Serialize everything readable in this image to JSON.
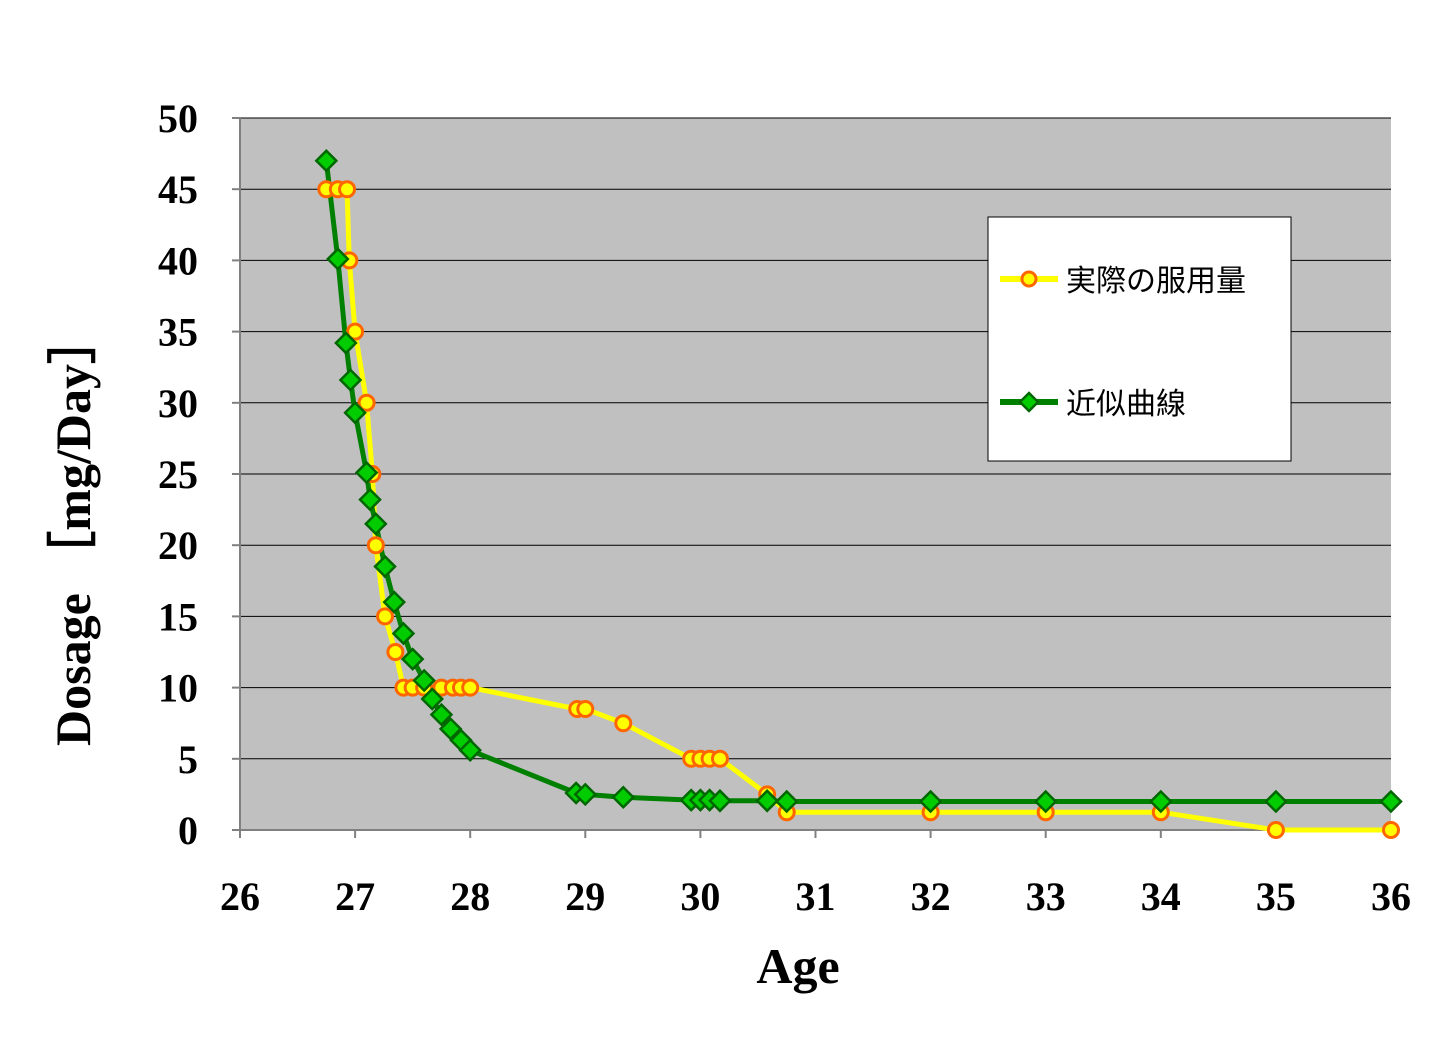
{
  "chart_data": {
    "type": "line",
    "xlabel": "Age",
    "ylabel": "Dosage ［mg/Day］",
    "xlim": [
      26,
      36
    ],
    "ylim": [
      0,
      50
    ],
    "xticks": [
      "26",
      "27",
      "28",
      "29",
      "30",
      "31",
      "32",
      "33",
      "34",
      "35",
      "36"
    ],
    "yticks": [
      "0",
      "5",
      "10",
      "15",
      "20",
      "25",
      "30",
      "35",
      "40",
      "45",
      "50"
    ],
    "plot_background": "#c0c0c0",
    "gridlines": "horizontal",
    "legend_position": "top-right",
    "series": [
      {
        "name": "実際の服用量",
        "line_color": "#ffff00",
        "marker": "circle",
        "marker_fill": "#ffff00",
        "marker_stroke": "#ff6600",
        "points": [
          [
            26.75,
            45
          ],
          [
            26.85,
            45
          ],
          [
            26.93,
            45
          ],
          [
            26.95,
            40
          ],
          [
            27.0,
            35
          ],
          [
            27.1,
            30
          ],
          [
            27.15,
            25
          ],
          [
            27.18,
            20
          ],
          [
            27.26,
            15
          ],
          [
            27.35,
            12.5
          ],
          [
            27.42,
            10
          ],
          [
            27.5,
            10
          ],
          [
            27.6,
            10
          ],
          [
            27.75,
            10
          ],
          [
            27.85,
            10
          ],
          [
            27.92,
            10
          ],
          [
            28.0,
            10
          ],
          [
            28.93,
            8.5
          ],
          [
            29.0,
            8.5
          ],
          [
            29.33,
            7.5
          ],
          [
            29.92,
            5
          ],
          [
            30.0,
            5
          ],
          [
            30.08,
            5
          ],
          [
            30.17,
            5
          ],
          [
            30.58,
            2.5
          ],
          [
            30.75,
            1.25
          ],
          [
            32.0,
            1.25
          ],
          [
            33.0,
            1.25
          ],
          [
            34.0,
            1.25
          ],
          [
            35.0,
            0
          ],
          [
            36.0,
            0
          ]
        ]
      },
      {
        "name": "近似曲線",
        "line_color": "#008000",
        "marker": "diamond",
        "marker_fill": "#00cc00",
        "marker_stroke": "#006600",
        "points": [
          [
            26.75,
            47
          ],
          [
            26.85,
            40.1
          ],
          [
            26.92,
            34.2
          ],
          [
            26.96,
            31.6
          ],
          [
            27.0,
            29.3
          ],
          [
            27.1,
            25.1
          ],
          [
            27.13,
            23.2
          ],
          [
            27.18,
            21.5
          ],
          [
            27.26,
            18.5
          ],
          [
            27.34,
            16
          ],
          [
            27.42,
            13.8
          ],
          [
            27.5,
            12
          ],
          [
            27.6,
            10.5
          ],
          [
            27.67,
            9.2
          ],
          [
            27.75,
            8.1
          ],
          [
            27.83,
            7.1
          ],
          [
            27.92,
            6.3
          ],
          [
            28.0,
            5.6
          ],
          [
            28.92,
            2.6
          ],
          [
            29.0,
            2.5
          ],
          [
            29.33,
            2.3
          ],
          [
            29.92,
            2.1
          ],
          [
            30.0,
            2.1
          ],
          [
            30.08,
            2.1
          ],
          [
            30.17,
            2.05
          ],
          [
            30.58,
            2.05
          ],
          [
            30.75,
            2.0
          ],
          [
            32.0,
            2.0
          ],
          [
            33.0,
            2.0
          ],
          [
            34.0,
            2.0
          ],
          [
            35.0,
            2.0
          ],
          [
            36.0,
            2.0
          ]
        ]
      }
    ]
  }
}
